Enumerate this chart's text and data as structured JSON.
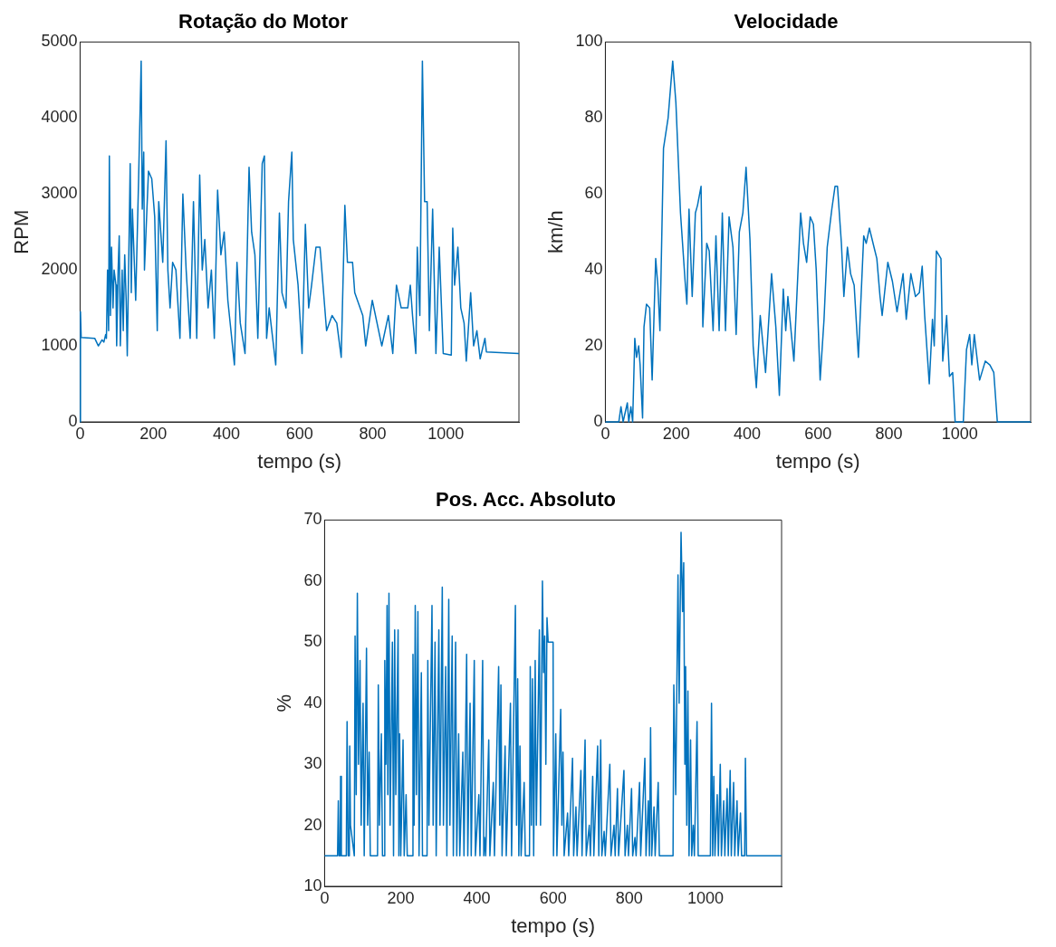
{
  "chart_data": [
    {
      "type": "line",
      "title": "Rotação do Motor",
      "xlabel": "tempo (s)",
      "ylabel": "RPM",
      "xlim": [
        0,
        1200
      ],
      "xticks": [
        0,
        200,
        400,
        600,
        800,
        1000
      ],
      "ylim": [
        0,
        5000
      ],
      "yticks": [
        0,
        1000,
        2000,
        3000,
        4000,
        5000
      ],
      "grid": false,
      "x": [
        0,
        1,
        3,
        40,
        50,
        60,
        65,
        70,
        72,
        75,
        78,
        80,
        83,
        86,
        90,
        93,
        98,
        100,
        104,
        107,
        110,
        115,
        118,
        122,
        126,
        129,
        137,
        140,
        143,
        152,
        160,
        167,
        170,
        174,
        176,
        187,
        196,
        204,
        211,
        215,
        226,
        235,
        240,
        246,
        253,
        262,
        273,
        281,
        290,
        301,
        310,
        319,
        327,
        334,
        341,
        350,
        359,
        367,
        376,
        385,
        394,
        404,
        422,
        429,
        438,
        451,
        462,
        469,
        478,
        486,
        498,
        504,
        510,
        517,
        535,
        545,
        552,
        563,
        570,
        579,
        583,
        596,
        607,
        616,
        625,
        633,
        645,
        656,
        674,
        689,
        702,
        714,
        724,
        731,
        745,
        751,
        773,
        781,
        799,
        812,
        825,
        843,
        855,
        865,
        878,
        896,
        903,
        909,
        918,
        922,
        929,
        936,
        942,
        949,
        955,
        964,
        973,
        982,
        993,
        1015,
        1019,
        1024,
        1033,
        1041,
        1050,
        1056,
        1068,
        1076,
        1085,
        1094,
        1107,
        1111,
        1200
      ],
      "series": [
        {
          "color": "#0072bd",
          "values": [
            0,
            1450,
            1110,
            1100,
            1000,
            1080,
            1050,
            1150,
            1100,
            2000,
            1200,
            3500,
            1400,
            2300,
            1500,
            2000,
            1800,
            1000,
            2000,
            2450,
            1000,
            2000,
            1200,
            2200,
            1600,
            870,
            3400,
            1700,
            2800,
            1600,
            3200,
            4750,
            2800,
            3550,
            2000,
            3300,
            3200,
            2700,
            1200,
            2900,
            2100,
            3700,
            2000,
            1500,
            2100,
            2000,
            1100,
            3000,
            2000,
            1100,
            2900,
            1100,
            3250,
            2000,
            2400,
            1500,
            2000,
            1100,
            3050,
            2200,
            2500,
            1600,
            750,
            2100,
            1300,
            900,
            3350,
            2500,
            2200,
            1100,
            3400,
            3500,
            1100,
            1500,
            750,
            2750,
            1700,
            1500,
            2900,
            3550,
            2400,
            1800,
            900,
            2600,
            1500,
            1800,
            2300,
            2300,
            1200,
            1400,
            1300,
            850,
            2850,
            2100,
            2100,
            1700,
            1400,
            1000,
            1600,
            1300,
            1000,
            1400,
            900,
            1800,
            1500,
            1500,
            1800,
            1400,
            900,
            2300,
            1400,
            4750,
            2900,
            2900,
            1200,
            2800,
            900,
            2300,
            900,
            880,
            2550,
            1800,
            2300,
            1500,
            1300,
            800,
            1700,
            1000,
            1200,
            830,
            1100,
            920,
            900
          ]
        }
      ]
    },
    {
      "type": "line",
      "title": "Velocidade",
      "xlabel": "tempo (s)",
      "ylabel": "km/h",
      "xlim": [
        0,
        1200
      ],
      "xticks": [
        0,
        200,
        400,
        600,
        800,
        1000
      ],
      "ylim": [
        0,
        100
      ],
      "yticks": [
        0,
        20,
        40,
        60,
        80,
        100
      ],
      "grid": false,
      "x": [
        0,
        38,
        44,
        50,
        62,
        66,
        72,
        77,
        83,
        88,
        94,
        98,
        105,
        109,
        116,
        125,
        132,
        142,
        148,
        154,
        164,
        177,
        190,
        199,
        212,
        225,
        230,
        236,
        245,
        254,
        260,
        270,
        275,
        286,
        293,
        304,
        312,
        321,
        330,
        339,
        349,
        360,
        369,
        378,
        388,
        397,
        408,
        417,
        426,
        437,
        452,
        469,
        481,
        491,
        502,
        509,
        515,
        532,
        551,
        559,
        568,
        578,
        587,
        595,
        606,
        617,
        626,
        639,
        648,
        655,
        666,
        673,
        683,
        692,
        702,
        714,
        729,
        736,
        745,
        758,
        766,
        775,
        781,
        797,
        810,
        823,
        840,
        849,
        862,
        875,
        886,
        894,
        901,
        914,
        923,
        928,
        934,
        947,
        952,
        963,
        971,
        980,
        987,
        1010,
        1019,
        1028,
        1034,
        1041,
        1056,
        1072,
        1085,
        1096,
        1106,
        1200
      ],
      "series": [
        {
          "color": "#0072bd",
          "values": [
            0,
            0,
            4,
            0,
            5,
            0,
            4,
            0,
            22,
            17,
            20,
            15,
            1,
            25,
            31,
            30,
            11,
            43,
            36,
            24,
            72,
            80,
            95,
            84,
            55,
            37,
            31,
            56,
            33,
            55,
            57,
            62,
            25,
            47,
            45,
            24,
            49,
            24,
            55,
            24,
            54,
            46,
            23,
            50,
            55,
            67,
            48,
            20,
            9,
            28,
            13,
            39,
            25,
            7,
            35,
            24,
            33,
            16,
            55,
            47,
            42,
            54,
            52,
            40,
            11,
            27,
            46,
            56,
            62,
            62,
            47,
            33,
            46,
            39,
            36,
            17,
            49,
            47,
            51,
            46,
            43,
            33,
            28,
            42,
            37,
            29,
            39,
            27,
            39,
            33,
            34,
            41,
            28,
            10,
            27,
            20,
            45,
            43,
            16,
            28,
            12,
            13,
            0,
            0,
            19,
            23,
            15,
            23,
            11,
            16,
            15,
            13,
            0,
            0
          ]
        }
      ]
    },
    {
      "type": "line",
      "title": "Pos. Acc. Absoluto",
      "xlabel": "tempo (s)",
      "ylabel": "%",
      "xlim": [
        0,
        1200
      ],
      "xticks": [
        0,
        200,
        400,
        600,
        800,
        1000
      ],
      "ylim": [
        10,
        70
      ],
      "yticks": [
        10,
        20,
        30,
        40,
        50,
        60,
        70
      ],
      "grid": false,
      "x": [
        0,
        34,
        36,
        38,
        41,
        42,
        44,
        57,
        59,
        62,
        65,
        66,
        68,
        78,
        80,
        83,
        86,
        89,
        93,
        96,
        101,
        104,
        110,
        113,
        117,
        120,
        139,
        141,
        144,
        149,
        152,
        156,
        158,
        161,
        164,
        166,
        169,
        172,
        178,
        181,
        184,
        187,
        193,
        195,
        197,
        200,
        206,
        209,
        214,
        217,
        230,
        232,
        235,
        238,
        241,
        245,
        248,
        254,
        257,
        269,
        271,
        274,
        282,
        285,
        290,
        293,
        300,
        303,
        309,
        312,
        318,
        321,
        326,
        329,
        335,
        338,
        344,
        347,
        352,
        355,
        363,
        366,
        373,
        376,
        382,
        385,
        393,
        396,
        405,
        408,
        415,
        418,
        420,
        423,
        431,
        434,
        443,
        446,
        457,
        460,
        463,
        466,
        474,
        477,
        488,
        491,
        501,
        504,
        507,
        510,
        513,
        516,
        524,
        527,
        538,
        540,
        543,
        546,
        549,
        553,
        556,
        564,
        567,
        572,
        575,
        578,
        581,
        584,
        587,
        590,
        600,
        601,
        607,
        610,
        620,
        623,
        626,
        629,
        638,
        641,
        651,
        654,
        660,
        663,
        673,
        676,
        684,
        687,
        695,
        698,
        704,
        707,
        717,
        720,
        725,
        728,
        734,
        737,
        749,
        752,
        760,
        763,
        769,
        772,
        786,
        789,
        795,
        798,
        806,
        809,
        815,
        818,
        827,
        830,
        841,
        844,
        850,
        853,
        856,
        859,
        865,
        868,
        876,
        879,
        915,
        917,
        922,
        928,
        931,
        936,
        940,
        943,
        946,
        948,
        951,
        954,
        957,
        961,
        964,
        968,
        971,
        978,
        981,
        1013,
        1016,
        1019,
        1022,
        1025,
        1031,
        1034,
        1039,
        1042,
        1048,
        1051,
        1057,
        1060,
        1065,
        1068,
        1074,
        1077,
        1083,
        1086,
        1092,
        1095,
        1103,
        1105,
        1108,
        1200
      ],
      "series": [
        {
          "color": "#0072bd",
          "values": [
            15,
            15,
            24,
            15,
            15,
            28,
            15,
            15,
            37,
            15,
            15,
            33,
            20,
            15,
            51,
            25,
            58,
            30,
            47,
            20,
            40,
            15,
            49,
            20,
            32,
            15,
            15,
            43,
            20,
            35,
            15,
            15,
            47,
            30,
            56,
            25,
            58,
            20,
            50,
            15,
            52,
            25,
            52,
            15,
            35,
            15,
            34,
            15,
            25,
            15,
            15,
            48,
            20,
            56,
            25,
            55,
            15,
            45,
            15,
            15,
            47,
            20,
            56,
            20,
            50,
            15,
            52,
            20,
            59,
            20,
            46,
            15,
            57,
            20,
            51,
            15,
            50,
            15,
            35,
            15,
            32,
            15,
            48,
            15,
            40,
            15,
            47,
            15,
            25,
            15,
            47,
            15,
            18,
            15,
            34,
            15,
            27,
            15,
            46,
            20,
            43,
            15,
            33,
            15,
            40,
            15,
            56,
            20,
            44,
            15,
            33,
            15,
            27,
            15,
            15,
            46,
            20,
            44,
            15,
            47,
            20,
            52,
            20,
            60,
            45,
            51,
            30,
            54,
            50,
            50,
            50,
            15,
            35,
            15,
            39,
            20,
            32,
            15,
            22,
            15,
            31,
            15,
            23,
            15,
            29,
            15,
            34,
            15,
            20,
            15,
            28,
            15,
            33,
            15,
            34,
            15,
            19,
            15,
            30,
            15,
            20,
            15,
            26,
            15,
            29,
            15,
            20,
            15,
            26,
            15,
            18,
            15,
            27,
            15,
            31,
            15,
            24,
            15,
            36,
            15,
            23,
            15,
            27,
            15,
            15,
            43,
            25,
            61,
            40,
            68,
            55,
            63,
            30,
            46,
            20,
            42,
            15,
            34,
            15,
            20,
            15,
            37,
            15,
            15,
            40,
            15,
            28,
            15,
            25,
            15,
            30,
            15,
            24,
            15,
            26,
            15,
            29,
            15,
            27,
            15,
            24,
            15,
            22,
            15,
            15,
            31,
            15,
            15
          ]
        }
      ]
    }
  ]
}
